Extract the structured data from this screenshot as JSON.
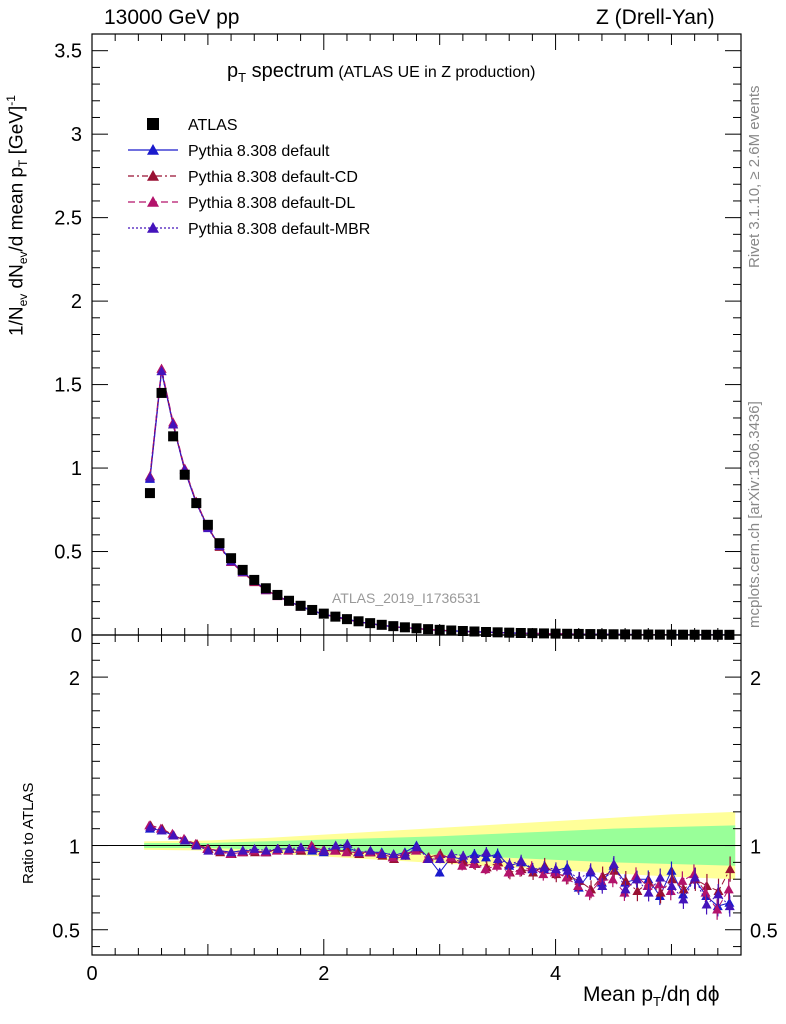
{
  "header": {
    "energy": "13000 GeV pp",
    "process": "Z (Drell-Yan)",
    "rivet": "Rivet 3.1.10, ≥ 2.6M events",
    "mcplots": "mcplots.cern.ch [arXiv:1306.3436]"
  },
  "colors": {
    "atlas": "#000000",
    "default": "#1a1acc",
    "cd": "#991133",
    "dl": "#b3136b",
    "mbr": "#4413bb",
    "band_inner": "#99ff99",
    "band_outer": "#ffff99"
  },
  "chart_data": {
    "type": "scatter",
    "title": "p_T spectrum",
    "subtitle": "(ATLAS UE in Z production)",
    "analysis_label": "ATLAS_2019_I1736531",
    "xlabel": "Mean p_T/dη dϕ",
    "ylabel": "1/N_ev dN_ev/d mean p_T [GeV]^-1",
    "ratio_ylabel": "Ratio to ATLAS",
    "xlim": [
      0,
      5.6
    ],
    "ylim": [
      0,
      3.6
    ],
    "ratio_ylim": [
      0.35,
      2.25
    ],
    "x_ticks": [
      0,
      2,
      4
    ],
    "y_ticks": [
      "0",
      "0.5",
      "1",
      "1.5",
      "2",
      "2.5",
      "3",
      "3.5"
    ],
    "ratio_ticks": [
      "0.5",
      "1",
      "2"
    ],
    "x": [
      0.5,
      0.6,
      0.7,
      0.8,
      0.9,
      1.0,
      1.1,
      1.2,
      1.3,
      1.4,
      1.5,
      1.6,
      1.7,
      1.8,
      1.9,
      2.0,
      2.1,
      2.2,
      2.3,
      2.4,
      2.5,
      2.6,
      2.7,
      2.8,
      2.9,
      3.0,
      3.1,
      3.2,
      3.3,
      3.4,
      3.5,
      3.6,
      3.7,
      3.8,
      3.9,
      4.0,
      4.1,
      4.2,
      4.3,
      4.4,
      4.5,
      4.6,
      4.7,
      4.8,
      4.9,
      5.0,
      5.1,
      5.2,
      5.3,
      5.4,
      5.5
    ],
    "atlas": [
      0.85,
      1.45,
      1.19,
      0.96,
      0.79,
      0.66,
      0.55,
      0.46,
      0.39,
      0.33,
      0.28,
      0.24,
      0.205,
      0.175,
      0.15,
      0.128,
      0.11,
      0.095,
      0.082,
      0.071,
      0.061,
      0.053,
      0.046,
      0.04,
      0.035,
      0.031,
      0.027,
      0.024,
      0.021,
      0.018,
      0.016,
      0.014,
      0.012,
      0.011,
      0.0095,
      0.0083,
      0.0073,
      0.0064,
      0.0056,
      0.0049,
      0.0043,
      0.0038,
      0.0033,
      0.0029,
      0.0025,
      0.0022,
      0.0019,
      0.0017,
      0.0015,
      0.0013,
      0.0011
    ],
    "legend": [
      {
        "key": "atlas",
        "label": "ATLAS"
      },
      {
        "key": "default",
        "label": "Pythia 8.308 default"
      },
      {
        "key": "cd",
        "label": "Pythia 8.308 default-CD"
      },
      {
        "key": "dl",
        "label": "Pythia 8.308 default-DL"
      },
      {
        "key": "mbr",
        "label": "Pythia 8.308 default-MBR"
      }
    ],
    "series": [
      {
        "key": "default",
        "name": "Pythia 8.308 default",
        "ratio": [
          1.1,
          1.09,
          1.06,
          1.03,
          1.0,
          0.98,
          0.97,
          0.96,
          0.97,
          0.97,
          0.96,
          0.98,
          0.98,
          0.97,
          0.97,
          0.96,
          0.99,
          0.99,
          0.96,
          0.96,
          0.96,
          0.94,
          0.96,
          1.0,
          0.93,
          0.84,
          0.93,
          0.92,
          0.95,
          0.93,
          0.95,
          0.88,
          0.9,
          0.86,
          0.86,
          0.85,
          0.87,
          0.75,
          0.84,
          0.78,
          0.88,
          0.78,
          0.8,
          0.8,
          0.7,
          0.85,
          0.71,
          0.8,
          0.7,
          0.64,
          0.66
        ]
      },
      {
        "key": "cd",
        "name": "Pythia 8.308 default-CD",
        "ratio": [
          1.12,
          1.1,
          1.06,
          1.03,
          1.01,
          0.98,
          0.96,
          0.95,
          0.96,
          0.96,
          0.96,
          0.98,
          0.98,
          0.97,
          0.99,
          0.97,
          0.97,
          0.97,
          0.95,
          0.96,
          0.94,
          0.92,
          0.94,
          0.98,
          0.93,
          0.95,
          0.92,
          0.9,
          0.89,
          0.87,
          0.9,
          0.84,
          0.86,
          0.84,
          0.88,
          0.83,
          0.82,
          0.79,
          0.74,
          0.82,
          0.85,
          0.79,
          0.73,
          0.78,
          0.72,
          0.8,
          0.74,
          0.8,
          0.76,
          0.73,
          0.86
        ]
      },
      {
        "key": "dl",
        "name": "Pythia 8.308 default-DL",
        "ratio": [
          1.12,
          1.1,
          1.07,
          1.04,
          1.01,
          0.98,
          0.97,
          0.95,
          0.96,
          0.97,
          0.96,
          0.97,
          0.97,
          0.98,
          1.0,
          0.97,
          0.97,
          0.96,
          0.96,
          0.96,
          0.95,
          0.93,
          0.95,
          0.97,
          0.92,
          0.94,
          0.93,
          0.88,
          0.89,
          0.86,
          0.88,
          0.84,
          0.85,
          0.87,
          0.83,
          0.84,
          0.81,
          0.76,
          0.72,
          0.79,
          0.8,
          0.72,
          0.82,
          0.76,
          0.77,
          0.73,
          0.79,
          0.83,
          0.72,
          0.62,
          0.74
        ]
      },
      {
        "key": "mbr",
        "name": "Pythia 8.308 default-MBR",
        "ratio": [
          1.11,
          1.09,
          1.06,
          1.03,
          1.0,
          0.97,
          0.97,
          0.96,
          0.97,
          0.98,
          0.97,
          0.98,
          0.98,
          0.99,
          0.98,
          0.97,
          1.0,
          1.01,
          0.96,
          0.97,
          0.95,
          0.95,
          0.94,
          0.99,
          0.92,
          0.92,
          0.95,
          0.94,
          0.92,
          0.96,
          0.92,
          0.89,
          0.91,
          0.86,
          0.87,
          0.86,
          0.85,
          0.8,
          0.85,
          0.76,
          0.89,
          0.74,
          0.8,
          0.72,
          0.81,
          0.76,
          0.68,
          0.81,
          0.65,
          0.71,
          0.64
        ]
      }
    ],
    "band": {
      "x": [
        0.45,
        1.0,
        1.5,
        2.0,
        2.5,
        3.0,
        3.5,
        4.0,
        4.5,
        5.0,
        5.55
      ],
      "inner": [
        0.015,
        0.015,
        0.025,
        0.035,
        0.045,
        0.055,
        0.07,
        0.085,
        0.1,
        0.11,
        0.12
      ],
      "outer": [
        0.025,
        0.03,
        0.045,
        0.065,
        0.085,
        0.105,
        0.125,
        0.145,
        0.165,
        0.185,
        0.2
      ]
    }
  }
}
